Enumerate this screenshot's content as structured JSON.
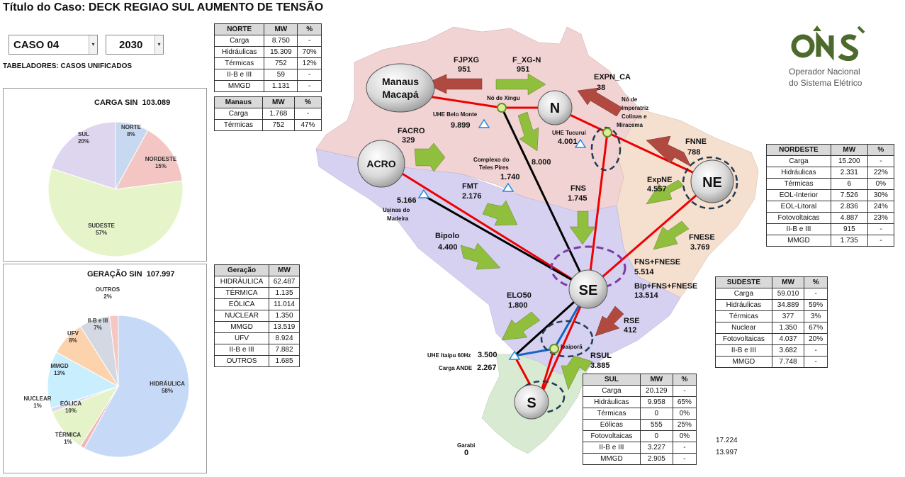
{
  "title": "Título do Caso: DECK REGIAO SUL AUMENTO DE TENSÃO",
  "case_select": "CASO 04",
  "year_select": "2030",
  "tabeladores": "TABELADORES: CASOS UNIFICADOS",
  "carga_sin": {
    "title": "CARGA SIN",
    "value": "103.089",
    "slices": [
      {
        "name": "NORTE",
        "pct": "8%",
        "value": 8,
        "color": "#c6d9f0"
      },
      {
        "name": "NORDESTE",
        "pct": "15%",
        "value": 15,
        "color": "#f4c6c3"
      },
      {
        "name": "SUDESTE",
        "pct": "57%",
        "value": 57,
        "color": "#e6f5c9"
      },
      {
        "name": "SUL",
        "pct": "20%",
        "value": 20,
        "color": "#ddd6ee"
      }
    ]
  },
  "geracao_sin": {
    "title": "GERAÇÃO SIN",
    "value": "107.997",
    "slices": [
      {
        "name": "HIDRÁULICA",
        "pct": "58%",
        "value": 58,
        "color": "#c6daf7"
      },
      {
        "name": "TÉRMICA",
        "pct": "1%",
        "value": 1,
        "color": "#f2b6b4"
      },
      {
        "name": "EÓLICA",
        "pct": "10%",
        "value": 10,
        "color": "#e4f3c8"
      },
      {
        "name": "NUCLEAR",
        "pct": "1%",
        "value": 1,
        "color": "#e1d9ee"
      },
      {
        "name": "MMGD",
        "pct": "13%",
        "value": 13,
        "color": "#c9efff"
      },
      {
        "name": "UFV",
        "pct": "8%",
        "value": 8,
        "color": "#fcd3ad"
      },
      {
        "name": "II-B e III",
        "pct": "7%",
        "value": 7,
        "color": "#d3d8e2"
      },
      {
        "name": "OUTROS",
        "pct": "2%",
        "value": 2,
        "color": "#f5c7c3"
      }
    ]
  },
  "norte_table": {
    "headers": [
      "NORTE",
      "MW",
      "%"
    ],
    "rows": [
      [
        "Carga",
        "8.750",
        "-"
      ],
      [
        "Hidráulicas",
        "15.309",
        "70%"
      ],
      [
        "Térmicas",
        "752",
        "12%"
      ],
      [
        "II-B e III",
        "59",
        "-"
      ],
      [
        "MMGD",
        "1.131",
        "-"
      ]
    ]
  },
  "manaus_table": {
    "headers": [
      "Manaus",
      "MW",
      "%"
    ],
    "rows": [
      [
        "Carga",
        "1.768",
        "-"
      ],
      [
        "Térmicas",
        "752",
        "47%"
      ]
    ]
  },
  "geracao_table": {
    "headers": [
      "Geração",
      "MW"
    ],
    "rows": [
      [
        "HIDRÁULICA",
        "62.487"
      ],
      [
        "TÉRMICA",
        "1.135"
      ],
      [
        "EÓLICA",
        "11.014"
      ],
      [
        "NUCLEAR",
        "1.350"
      ],
      [
        "MMGD",
        "13.519"
      ],
      [
        "UFV",
        "8.924"
      ],
      [
        "II-B e III",
        "7.882"
      ],
      [
        "OUTROS",
        "1.685"
      ]
    ]
  },
  "nordeste_table": {
    "headers": [
      "NORDESTE",
      "MW",
      "%"
    ],
    "rows": [
      [
        "Carga",
        "15.200",
        "-"
      ],
      [
        "Hidráulicas",
        "2.331",
        "22%"
      ],
      [
        "Térmicas",
        "6",
        "0%"
      ],
      [
        "EOL-Interior",
        "7.526",
        "30%"
      ],
      [
        "EOL-Litoral",
        "2.836",
        "24%"
      ],
      [
        "Fotovoltaicas",
        "4.887",
        "23%"
      ],
      [
        "II-B e III",
        "915",
        "-"
      ],
      [
        "MMGD",
        "1.735",
        "-"
      ]
    ]
  },
  "sudeste_table": {
    "headers": [
      "SUDESTE",
      "MW",
      "%"
    ],
    "rows": [
      [
        "Carga",
        "59.010",
        "-"
      ],
      [
        "Hidráulicas",
        "34.889",
        "59%"
      ],
      [
        "Térmicas",
        "377",
        "3%"
      ],
      [
        "Nuclear",
        "1.350",
        "67%"
      ],
      [
        "Fotovoltaicas",
        "4.037",
        "20%"
      ],
      [
        "II-B e III",
        "3.682",
        "-"
      ],
      [
        "MMGD",
        "7.748",
        "-"
      ]
    ]
  },
  "sul_table": {
    "headers": [
      "SUL",
      "MW",
      "%"
    ],
    "rows": [
      [
        "Carga",
        "20.129",
        "-"
      ],
      [
        "Hidráulicas",
        "9.958",
        "65%"
      ],
      [
        "Térmicas",
        "0",
        "0%"
      ],
      [
        "Eólicas",
        "555",
        "25%"
      ],
      [
        "Fotovoltaicas",
        "0",
        "0%"
      ],
      [
        "II-B e III",
        "3.227",
        "-"
      ],
      [
        "MMGD",
        "2.905",
        "-"
      ]
    ]
  },
  "sul_extra": [
    "17.224",
    "13.997"
  ],
  "logo": {
    "mark": "ONS",
    "line1": "Operador Nacional",
    "line2": "do Sistema Elétrico",
    "color": "#4b6a2b"
  },
  "map": {
    "nodes": {
      "manaus": [
        "Manaus",
        "Macapá"
      ],
      "n": "N",
      "acro": "ACRO",
      "ne": "NE",
      "se": "SE",
      "s": "S"
    },
    "flows": {
      "fjpxg_label": "FJPXG",
      "fjpxg_value": "951",
      "fxgn_label": "F_XG-N",
      "fxgn_value": "951",
      "expnca_label": "EXPN_CA",
      "expnca_value": "38",
      "facro_label": "FACRO",
      "facro_value": "329",
      "fmt_label": "FMT",
      "fmt_value": "2.176",
      "fns_label": "FNS",
      "fns_value": "1.745",
      "fnne_label": "FNNE",
      "fnne_value": "788",
      "expne_label": "ExpNE",
      "expne_value": "4.557",
      "fnese_label": "FNESE",
      "fnese_value": "3.769",
      "fnsfnese_label": "FNS+FNESE",
      "fnsfnese_value": "5.514",
      "bip_label": "Bip+FNS+FNESE",
      "bip_value": "13.514",
      "bipolo_label": "Bipolo",
      "bipolo_value": "4.400",
      "elo50_label": "ELO50",
      "elo50_value": "1.800",
      "rse_label": "RSE",
      "rse_value": "412",
      "rsul_label": "RSUL",
      "rsul_value": "3.885",
      "xingu_tucurui_value": "8.000"
    },
    "plants": {
      "no_xingu": "Nó de Xingu",
      "belo_monte": "UHE Belo Monte",
      "belo_monte_value": "9.899",
      "tucurui": "UHE Tucuruí",
      "tucurui_value": "4.001",
      "imperatriz": [
        "Nó de",
        "Imperatriz",
        "Colinas e",
        "Miracema"
      ],
      "teles_pires": [
        "Complexo do",
        "Teles Pires"
      ],
      "teles_pires_value": "1.740",
      "madeira_value": "5.166",
      "madeira": [
        "Usinas do",
        "Madeira"
      ],
      "itaipu": "UHE Itaipu 60Hz",
      "itaipu_value": "3.500",
      "ande": "Carga ANDE",
      "ande_value": "2.267",
      "ivaipora": "Ivaiporã",
      "garabi": "Garabi",
      "garabi_value": "0"
    }
  }
}
